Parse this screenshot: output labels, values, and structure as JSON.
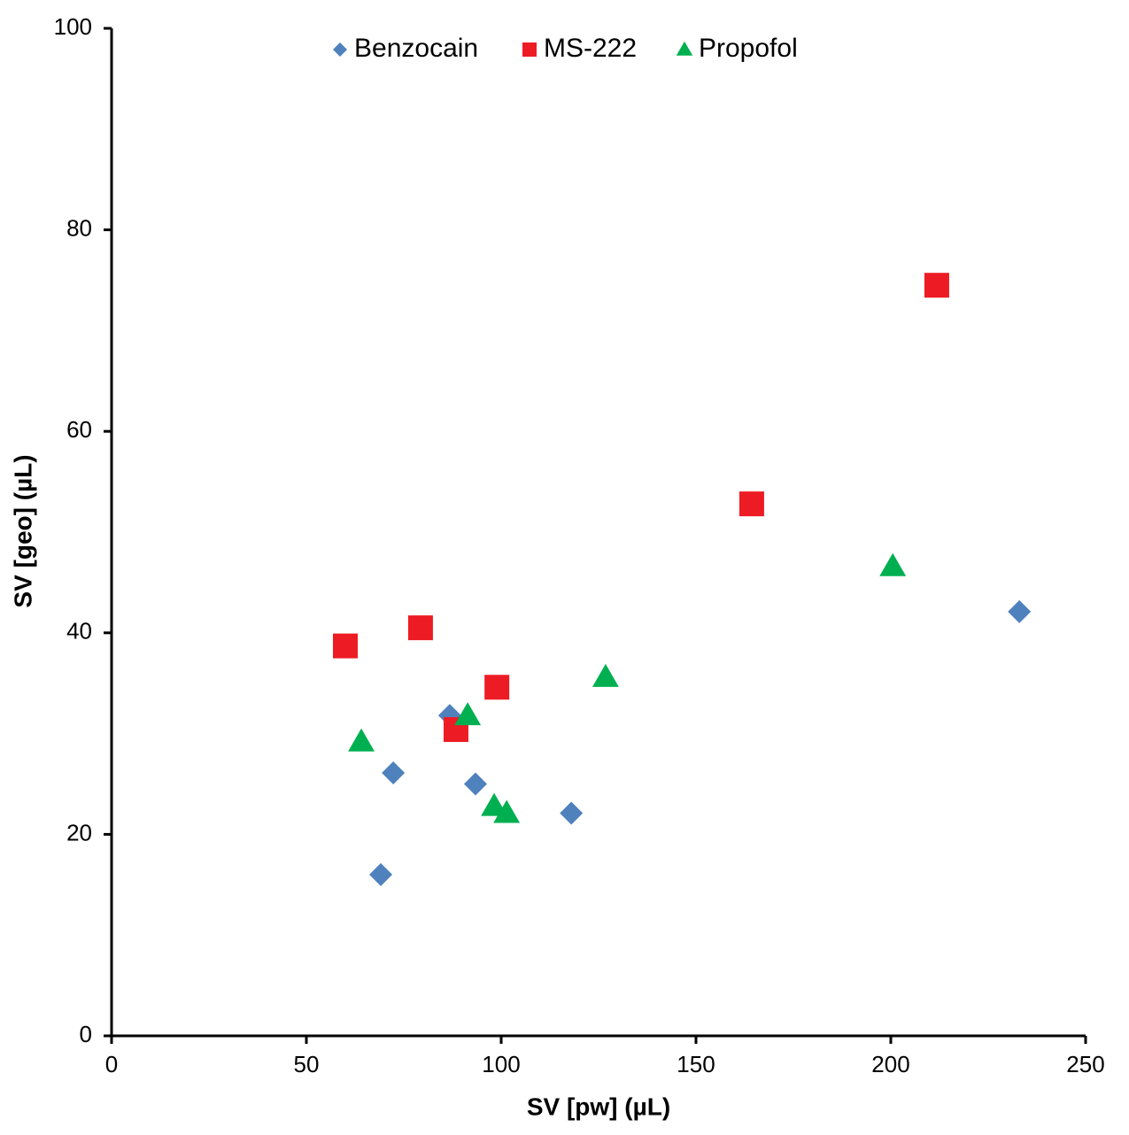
{
  "chart_data": {
    "type": "scatter",
    "x_label": "SV [pw] (µL)",
    "y_label": "SV [geo] (µL)",
    "xlim": [
      0,
      250
    ],
    "xticks": [
      0,
      50,
      100,
      150,
      200,
      250
    ],
    "ylim": [
      0,
      100
    ],
    "yticks": [
      0,
      20,
      40,
      60,
      80,
      100
    ],
    "legend": "top",
    "series": [
      {
        "name": "Benzocain",
        "color": "#4f81bd",
        "marker": "diamond",
        "x": [
          69.1,
          72.3,
          86.8,
          93.4,
          118,
          233
        ],
        "y": [
          16.0,
          26.1,
          31.8,
          25.0,
          22.1,
          42.1
        ]
      },
      {
        "name": "MS-222",
        "color": "#ed1c24",
        "marker": "square",
        "x": [
          60,
          79.3,
          88.4,
          98.9,
          164.3,
          211.8
        ],
        "y": [
          38.7,
          40.5,
          30.4,
          34.6,
          52.8,
          74.5
        ]
      },
      {
        "name": "Propofol",
        "color": "#00b050",
        "marker": "triangle",
        "x": [
          64.1,
          91.4,
          98.2,
          101.4,
          126.8,
          200.5
        ],
        "y": [
          29.2,
          31.8,
          22.8,
          22.1,
          35.6,
          46.6
        ]
      }
    ]
  }
}
